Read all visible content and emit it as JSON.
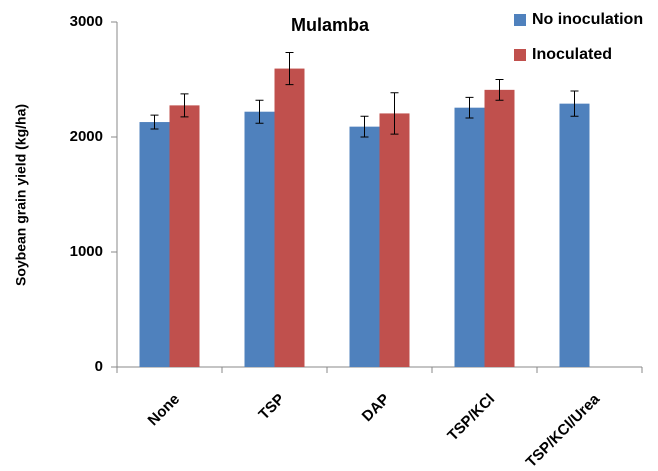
{
  "chart_data": {
    "type": "bar",
    "title": "Mulamba",
    "y_label": "Soybean grain yield (kg/ha)",
    "categories": [
      "None",
      "TSP",
      "DAP",
      "TSP/KCl",
      "TSP/KCl/Urea"
    ],
    "series": [
      {
        "name": "No inoculation",
        "color": "#4f81bd",
        "values": [
          2130,
          2220,
          2090,
          2255,
          2290
        ],
        "errors": [
          60,
          100,
          90,
          90,
          110
        ]
      },
      {
        "name": "Inoculated",
        "color": "#c0504d",
        "values": [
          2275,
          2595,
          2205,
          2410,
          null
        ],
        "errors": [
          100,
          140,
          180,
          90,
          null
        ]
      }
    ],
    "ylim": [
      0,
      3000
    ],
    "yticks": [
      0,
      1000,
      2000,
      3000
    ],
    "grid": false,
    "legend": "top-right"
  }
}
